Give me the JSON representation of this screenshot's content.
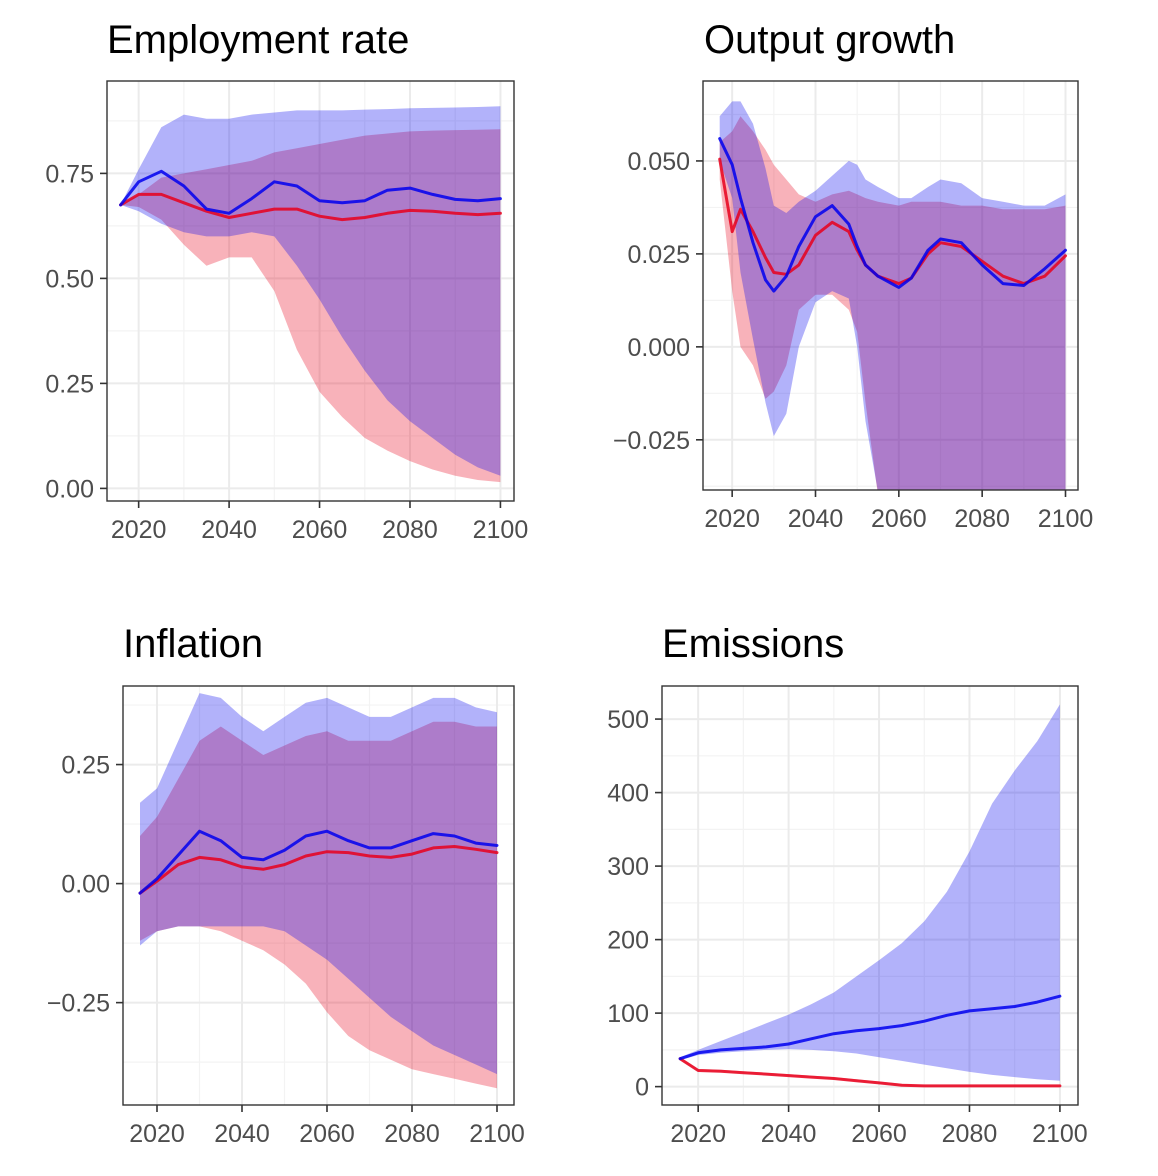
{
  "chart_data": [
    {
      "type": "area",
      "title": "Employment rate",
      "xlabel": "",
      "ylabel": "",
      "xlim": [
        2013,
        2103
      ],
      "ylim": [
        -0.03,
        0.97
      ],
      "xticks": [
        2020,
        2040,
        2060,
        2080,
        2100
      ],
      "yticks": [
        0.0,
        0.25,
        0.5,
        0.75
      ],
      "ytick_labels": [
        "0.00",
        "0.25",
        "0.50",
        "0.75"
      ],
      "grid": true,
      "legend": "none",
      "x": [
        2016,
        2020,
        2025,
        2030,
        2035,
        2040,
        2045,
        2050,
        2055,
        2060,
        2065,
        2070,
        2075,
        2080,
        2085,
        2090,
        2095,
        2100
      ],
      "series": [
        {
          "color": "#e8001c",
          "line": [
            0.675,
            0.7,
            0.7,
            0.68,
            0.66,
            0.645,
            0.655,
            0.665,
            0.665,
            0.648,
            0.64,
            0.645,
            0.655,
            0.662,
            0.66,
            0.655,
            0.652,
            0.655
          ],
          "lower": [
            0.675,
            0.67,
            0.64,
            0.58,
            0.53,
            0.55,
            0.55,
            0.47,
            0.33,
            0.23,
            0.17,
            0.12,
            0.09,
            0.065,
            0.045,
            0.03,
            0.02,
            0.015
          ],
          "upper": [
            0.675,
            0.7,
            0.74,
            0.75,
            0.76,
            0.77,
            0.78,
            0.8,
            0.81,
            0.82,
            0.83,
            0.84,
            0.845,
            0.85,
            0.852,
            0.853,
            0.854,
            0.855
          ]
        },
        {
          "color": "#0000ee",
          "line": [
            0.675,
            0.73,
            0.755,
            0.72,
            0.665,
            0.655,
            0.69,
            0.73,
            0.72,
            0.685,
            0.68,
            0.685,
            0.71,
            0.715,
            0.7,
            0.688,
            0.685,
            0.69
          ],
          "lower": [
            0.675,
            0.66,
            0.63,
            0.61,
            0.6,
            0.6,
            0.61,
            0.6,
            0.53,
            0.45,
            0.36,
            0.28,
            0.21,
            0.16,
            0.12,
            0.08,
            0.05,
            0.03
          ],
          "upper": [
            0.675,
            0.76,
            0.86,
            0.89,
            0.88,
            0.88,
            0.89,
            0.895,
            0.9,
            0.9,
            0.9,
            0.902,
            0.903,
            0.905,
            0.906,
            0.907,
            0.908,
            0.91
          ]
        }
      ]
    },
    {
      "type": "area",
      "title": "Output growth",
      "xlabel": "",
      "ylabel": "",
      "xlim": [
        2013,
        2103
      ],
      "ylim": [
        -0.0385,
        0.0715
      ],
      "xticks": [
        2020,
        2040,
        2060,
        2080,
        2100
      ],
      "yticks": [
        -0.025,
        0.0,
        0.025,
        0.05
      ],
      "ytick_labels": [
        "−0.025",
        "0.000",
        "0.025",
        "0.050"
      ],
      "grid": true,
      "legend": "none",
      "x": [
        2017,
        2020,
        2022,
        2025,
        2028,
        2030,
        2033,
        2036,
        2040,
        2044,
        2048,
        2050,
        2052,
        2055,
        2060,
        2063,
        2067,
        2070,
        2075,
        2080,
        2085,
        2090,
        2095,
        2100
      ],
      "series": [
        {
          "color": "#e8001c",
          "line": [
            0.0505,
            0.031,
            0.037,
            0.031,
            0.024,
            0.02,
            0.0195,
            0.022,
            0.03,
            0.0335,
            0.031,
            0.026,
            0.022,
            0.019,
            0.017,
            0.0185,
            0.025,
            0.028,
            0.027,
            0.023,
            0.019,
            0.017,
            0.019,
            0.0245
          ],
          "lower": [
            0.045,
            0.015,
            0.0,
            -0.005,
            -0.014,
            -0.012,
            -0.005,
            0.01,
            0.014,
            0.014,
            0.01,
            0.004,
            -0.015,
            -0.04,
            -0.04,
            -0.04,
            -0.039,
            -0.039,
            -0.039,
            -0.039,
            -0.039,
            -0.039,
            -0.039,
            -0.039
          ],
          "upper": [
            0.055,
            0.058,
            0.062,
            0.058,
            0.053,
            0.049,
            0.045,
            0.041,
            0.039,
            0.041,
            0.042,
            0.041,
            0.04,
            0.039,
            0.038,
            0.039,
            0.039,
            0.039,
            0.038,
            0.038,
            0.037,
            0.037,
            0.037,
            0.038
          ]
        },
        {
          "color": "#0000ee",
          "line": [
            0.056,
            0.049,
            0.04,
            0.028,
            0.018,
            0.015,
            0.019,
            0.027,
            0.035,
            0.038,
            0.033,
            0.027,
            0.022,
            0.019,
            0.016,
            0.0185,
            0.026,
            0.029,
            0.028,
            0.022,
            0.017,
            0.0165,
            0.021,
            0.026
          ],
          "lower": [
            0.05,
            0.04,
            0.02,
            0.002,
            -0.015,
            -0.024,
            -0.018,
            0.0,
            0.012,
            0.015,
            0.013,
            0.0,
            -0.02,
            -0.039,
            -0.039,
            -0.039,
            -0.039,
            -0.039,
            -0.039,
            -0.039,
            -0.039,
            -0.039,
            -0.039,
            -0.039
          ],
          "upper": [
            0.062,
            0.066,
            0.066,
            0.06,
            0.048,
            0.038,
            0.036,
            0.039,
            0.042,
            0.046,
            0.05,
            0.049,
            0.045,
            0.043,
            0.04,
            0.04,
            0.043,
            0.045,
            0.044,
            0.04,
            0.039,
            0.038,
            0.038,
            0.041
          ]
        }
      ]
    },
    {
      "type": "area",
      "title": "Inflation",
      "xlabel": "",
      "ylabel": "",
      "xlim": [
        2012,
        2104
      ],
      "ylim": [
        -0.465,
        0.415
      ],
      "xticks": [
        2020,
        2040,
        2060,
        2080,
        2100
      ],
      "yticks": [
        -0.25,
        0.0,
        0.25
      ],
      "ytick_labels": [
        "−0.25",
        "0.00",
        "0.25"
      ],
      "grid": true,
      "legend": "none",
      "x": [
        2016,
        2020,
        2025,
        2030,
        2035,
        2040,
        2045,
        2050,
        2055,
        2060,
        2065,
        2070,
        2075,
        2080,
        2085,
        2090,
        2095,
        2100
      ],
      "series": [
        {
          "color": "#e8001c",
          "line": [
            -0.02,
            0.005,
            0.04,
            0.055,
            0.05,
            0.035,
            0.03,
            0.04,
            0.058,
            0.067,
            0.065,
            0.058,
            0.055,
            0.062,
            0.075,
            0.078,
            0.072,
            0.065
          ],
          "lower": [
            -0.12,
            -0.1,
            -0.09,
            -0.09,
            -0.1,
            -0.12,
            -0.14,
            -0.17,
            -0.21,
            -0.27,
            -0.32,
            -0.35,
            -0.37,
            -0.39,
            -0.4,
            -0.41,
            -0.42,
            -0.43
          ],
          "upper": [
            0.1,
            0.14,
            0.22,
            0.3,
            0.33,
            0.3,
            0.27,
            0.29,
            0.31,
            0.32,
            0.3,
            0.3,
            0.3,
            0.32,
            0.34,
            0.34,
            0.33,
            0.33
          ]
        },
        {
          "color": "#0000ee",
          "line": [
            -0.02,
            0.01,
            0.06,
            0.11,
            0.09,
            0.055,
            0.05,
            0.07,
            0.1,
            0.11,
            0.09,
            0.075,
            0.075,
            0.09,
            0.105,
            0.1,
            0.085,
            0.08
          ],
          "lower": [
            -0.13,
            -0.1,
            -0.09,
            -0.09,
            -0.09,
            -0.09,
            -0.09,
            -0.1,
            -0.13,
            -0.16,
            -0.2,
            -0.24,
            -0.28,
            -0.31,
            -0.34,
            -0.36,
            -0.38,
            -0.4
          ],
          "upper": [
            0.17,
            0.2,
            0.3,
            0.4,
            0.39,
            0.35,
            0.32,
            0.35,
            0.38,
            0.39,
            0.37,
            0.35,
            0.35,
            0.37,
            0.39,
            0.39,
            0.37,
            0.36
          ]
        }
      ]
    },
    {
      "type": "area",
      "title": "Emissions",
      "xlabel": "",
      "ylabel": "",
      "xlim": [
        2012,
        2104
      ],
      "ylim": [
        -25,
        545
      ],
      "xticks": [
        2020,
        2040,
        2060,
        2080,
        2100
      ],
      "yticks": [
        0,
        100,
        200,
        300,
        400,
        500
      ],
      "ytick_labels": [
        "0",
        "100",
        "200",
        "300",
        "400",
        "500"
      ],
      "grid": true,
      "legend": "none",
      "x": [
        2016,
        2020,
        2025,
        2030,
        2035,
        2040,
        2045,
        2050,
        2055,
        2060,
        2065,
        2070,
        2075,
        2080,
        2085,
        2090,
        2095,
        2100
      ],
      "series": [
        {
          "color": "#e8001c",
          "line": [
            38,
            22,
            21,
            19,
            17,
            15,
            13,
            11,
            8,
            5,
            2,
            1,
            1,
            1,
            1,
            1,
            1,
            1
          ],
          "lower": [
            36,
            21,
            20,
            18,
            16,
            14,
            12,
            10,
            7,
            4,
            1,
            0,
            0,
            0,
            0,
            0,
            0,
            0
          ],
          "upper": [
            40,
            24,
            23,
            21,
            19,
            17,
            15,
            13,
            10,
            7,
            4,
            2,
            2,
            2,
            2,
            2,
            2,
            2
          ]
        },
        {
          "color": "#0000ee",
          "line": [
            38,
            46,
            50,
            52,
            54,
            58,
            65,
            72,
            76,
            79,
            83,
            89,
            97,
            103,
            106,
            109,
            115,
            123
          ],
          "lower": [
            36,
            43,
            46,
            48,
            50,
            51,
            50,
            48,
            45,
            40,
            35,
            30,
            25,
            20,
            16,
            13,
            10,
            8
          ],
          "upper": [
            40,
            50,
            62,
            74,
            86,
            98,
            112,
            128,
            150,
            172,
            195,
            225,
            265,
            320,
            385,
            430,
            470,
            520
          ]
        }
      ]
    }
  ]
}
